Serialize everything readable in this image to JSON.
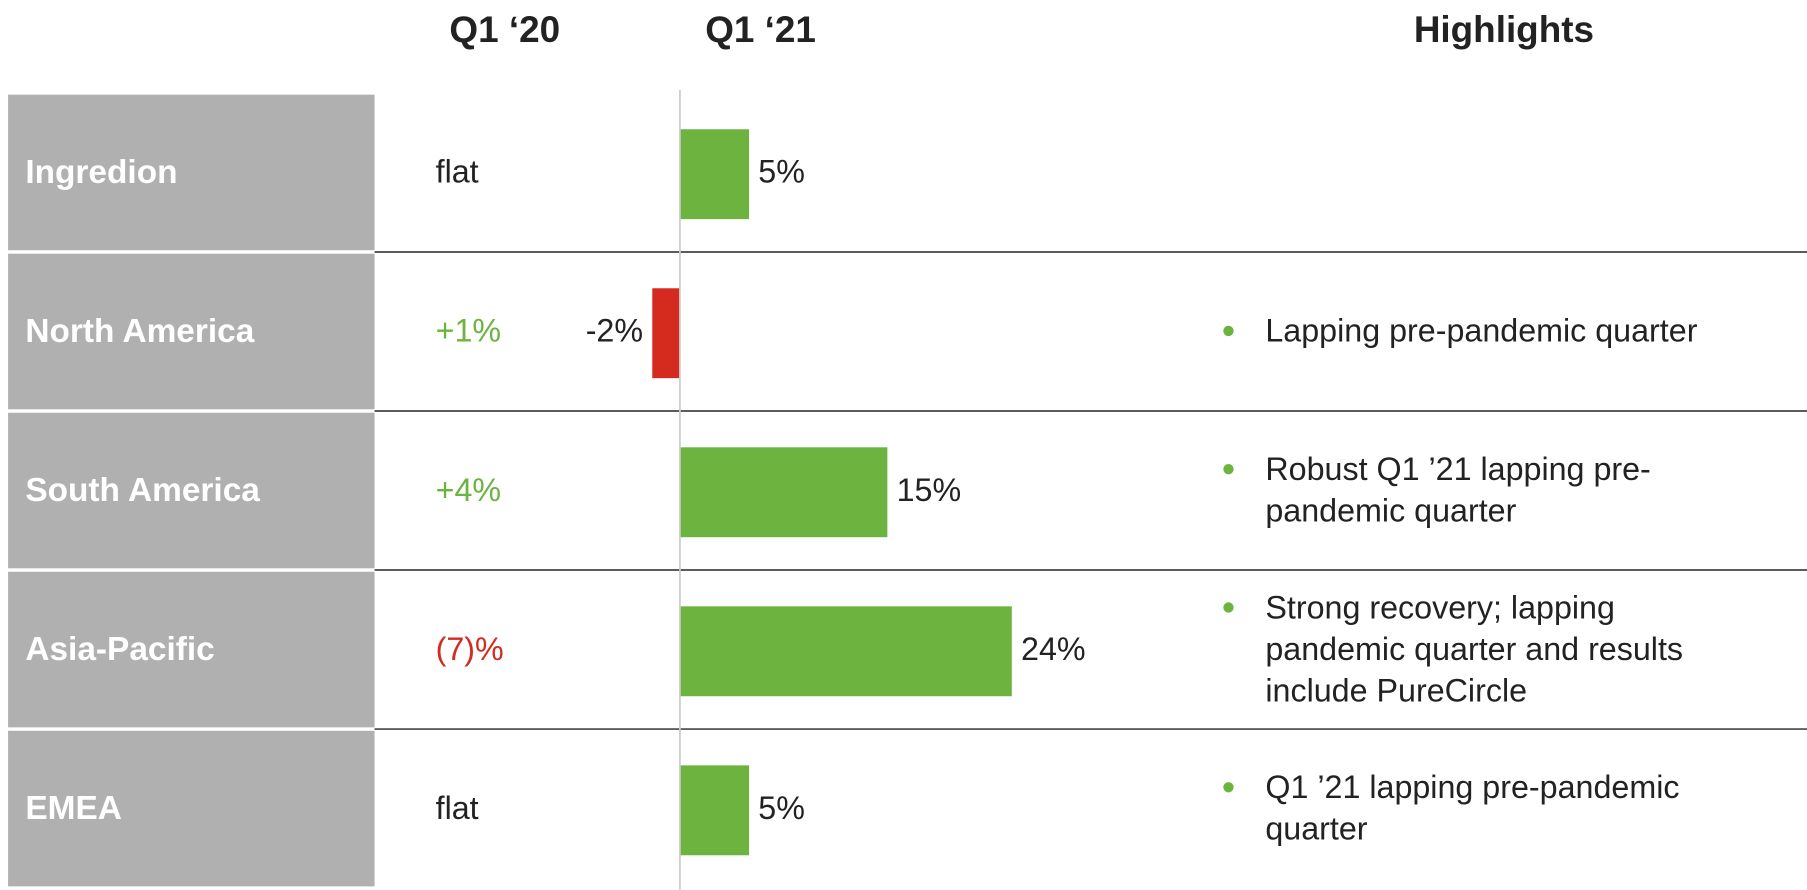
{
  "headers": {
    "q1_20": "Q1 ‘20",
    "q1_21": "Q1 ‘21",
    "highlights": "Highlights"
  },
  "q1_20": [
    {
      "label": "flat",
      "color": "#222222"
    },
    {
      "label": "+1%",
      "color": "#6db33f"
    },
    {
      "label": "+4%",
      "color": "#6db33f"
    },
    {
      "label": "(7)%",
      "color": "#d52b1e"
    },
    {
      "label": "flat",
      "color": "#222222"
    }
  ],
  "highlights": [
    [],
    [
      [
        "Lapping pre-pandemic quarter"
      ]
    ],
    [
      [
        "Robust Q1 ’21 lapping pre-",
        "pandemic quarter"
      ]
    ],
    [
      [
        "Strong recovery; lapping",
        "pandemic quarter and results",
        "include PureCircle"
      ]
    ],
    [
      [
        "Q1 ’21 lapping pre-pandemic",
        "quarter"
      ]
    ]
  ],
  "chart_data": {
    "type": "bar",
    "orientation": "horizontal",
    "categories": [
      "Ingredion",
      "North America",
      "South America",
      "Asia-Pacific",
      "EMEA"
    ],
    "values": [
      5,
      -2,
      15,
      24,
      5
    ],
    "value_labels": [
      "5%",
      "-2%",
      "15%",
      "24%",
      "5%"
    ],
    "colors": [
      "#6db33f",
      "#d52b1e",
      "#6db33f",
      "#6db33f",
      "#6db33f"
    ],
    "xlim": [
      -5,
      45
    ]
  }
}
